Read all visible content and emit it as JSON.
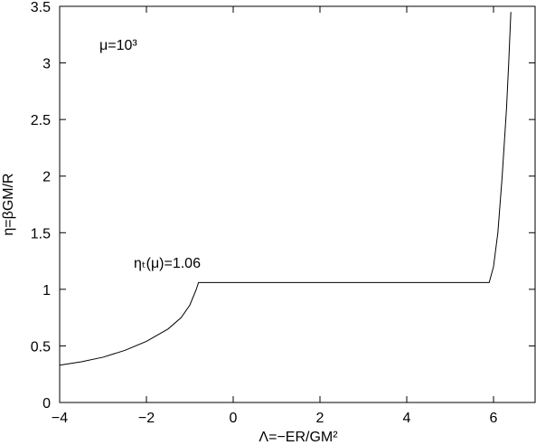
{
  "chart_data": {
    "type": "line",
    "xlabel": "Λ=−ER/GM²",
    "ylabel": "η=βGM/R",
    "annotations": [
      "μ=10³",
      "ηₜ(μ)=1.06"
    ],
    "xlim": [
      -4,
      7
    ],
    "ylim": [
      0,
      3.5
    ],
    "xticks": [
      {
        "value": -4,
        "label": "−4"
      },
      {
        "value": -2,
        "label": "−2"
      },
      0,
      2,
      4,
      6
    ],
    "yticks": [
      0,
      0.5,
      1,
      1.5,
      2,
      2.5,
      3,
      3.5
    ],
    "series": [
      {
        "color": "#000000",
        "x": [
          -4,
          -3.5,
          -3,
          -2.5,
          -2,
          -1.5,
          -1.2,
          -1,
          -0.85,
          -0.8,
          0,
          2,
          4,
          5.9,
          6,
          6.1,
          6.2,
          6.3,
          6.35,
          6.4
        ],
        "values": [
          0.33,
          0.36,
          0.4,
          0.46,
          0.54,
          0.65,
          0.75,
          0.86,
          1.0,
          1.06,
          1.06,
          1.06,
          1.06,
          1.06,
          1.2,
          1.5,
          2.0,
          2.6,
          3.0,
          3.45
        ]
      }
    ]
  }
}
